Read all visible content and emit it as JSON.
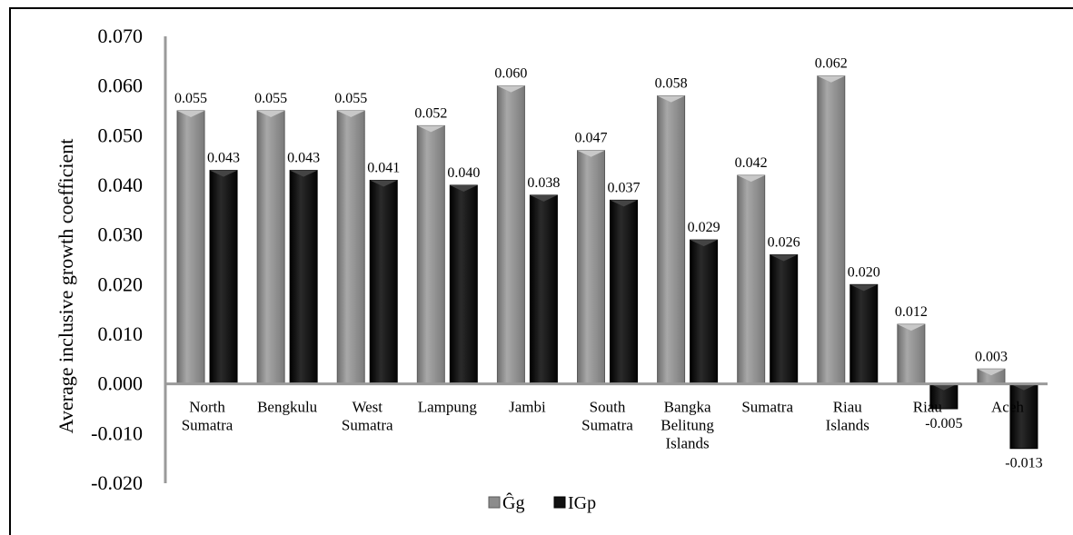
{
  "chart_data": {
    "type": "bar",
    "ylabel": "Average inclusive growth coefficient",
    "ylim": [
      -0.02,
      0.07
    ],
    "yticks": [
      "0.070",
      "0.060",
      "0.050",
      "0.040",
      "0.030",
      "0.020",
      "0.010",
      "0.000",
      "-0.010",
      "-0.020"
    ],
    "ytick_values": [
      0.07,
      0.06,
      0.05,
      0.04,
      0.03,
      0.02,
      0.01,
      0.0,
      -0.01,
      -0.02
    ],
    "categories": [
      [
        "North",
        "Sumatra"
      ],
      [
        "Bengkulu"
      ],
      [
        "West",
        "Sumatra"
      ],
      [
        "Lampung"
      ],
      [
        "Jambi"
      ],
      [
        "South",
        "Sumatra"
      ],
      [
        "Bangka",
        "Belitung",
        "Islands"
      ],
      [
        "Sumatra"
      ],
      [
        "Riau",
        "Islands"
      ],
      [
        "Riau"
      ],
      [
        "Aceh"
      ]
    ],
    "series": [
      {
        "name": "Ĝg",
        "color": "#8c8c8c",
        "values": [
          0.055,
          0.055,
          0.055,
          0.052,
          0.06,
          0.047,
          0.058,
          0.042,
          0.062,
          0.012,
          0.003
        ],
        "labels": [
          "0.055",
          "0.055",
          "0.055",
          "0.052",
          "0.060",
          "0.047",
          "0.058",
          "0.042",
          "0.062",
          "0.012",
          "0.003"
        ]
      },
      {
        "name": "IGp",
        "color": "#111111",
        "values": [
          0.043,
          0.043,
          0.041,
          0.04,
          0.038,
          0.037,
          0.029,
          0.026,
          0.02,
          -0.005,
          -0.013
        ],
        "labels": [
          "0.043",
          "0.043",
          "0.041",
          "0.040",
          "0.038",
          "0.037",
          "0.029",
          "0.026",
          "0.020",
          "-0.005",
          "-0.013"
        ]
      }
    ],
    "legend": "bottom",
    "grid": false
  }
}
